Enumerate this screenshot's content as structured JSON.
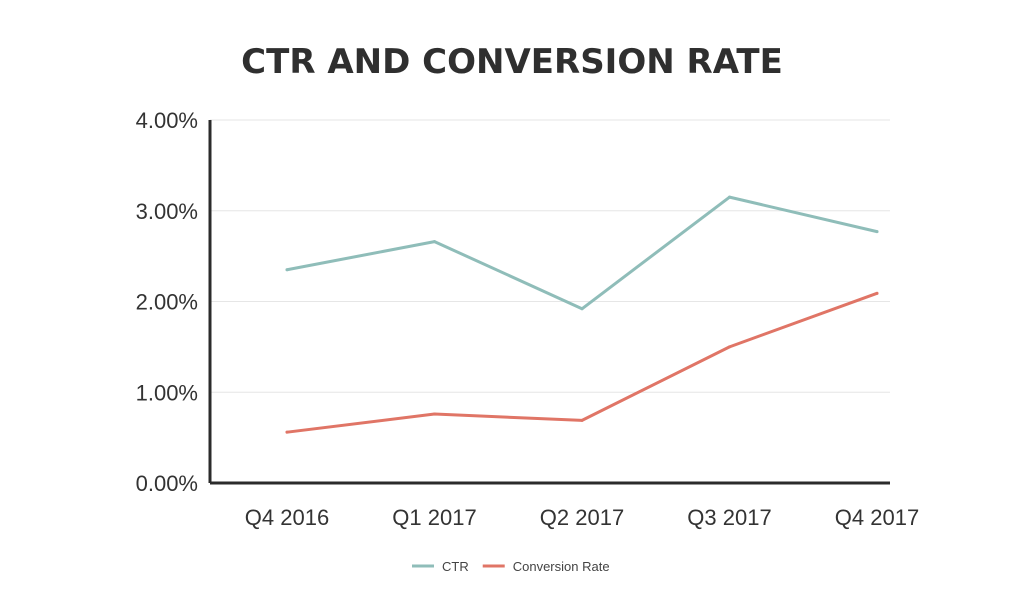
{
  "chart_data": {
    "type": "line",
    "title": "CTR AND CONVERSION RATE",
    "xlabel": "",
    "ylabel": "",
    "categories": [
      "Q4 2016",
      "Q1 2017",
      "Q2 2017",
      "Q3 2017",
      "Q4 2017"
    ],
    "ylim": [
      0,
      4
    ],
    "yticks": [
      "0.00%",
      "1.00%",
      "2.00%",
      "3.00%",
      "4.00%"
    ],
    "ytick_values": [
      0,
      1,
      2,
      3,
      4
    ],
    "grid": true,
    "legend_position": "bottom",
    "series": [
      {
        "name": "CTR",
        "color": "#8fbdb9",
        "values": [
          2.35,
          2.66,
          1.92,
          3.15,
          2.77
        ]
      },
      {
        "name": "Conversion Rate",
        "color": "#e07566",
        "values": [
          0.56,
          0.76,
          0.69,
          1.5,
          2.09
        ]
      }
    ]
  }
}
